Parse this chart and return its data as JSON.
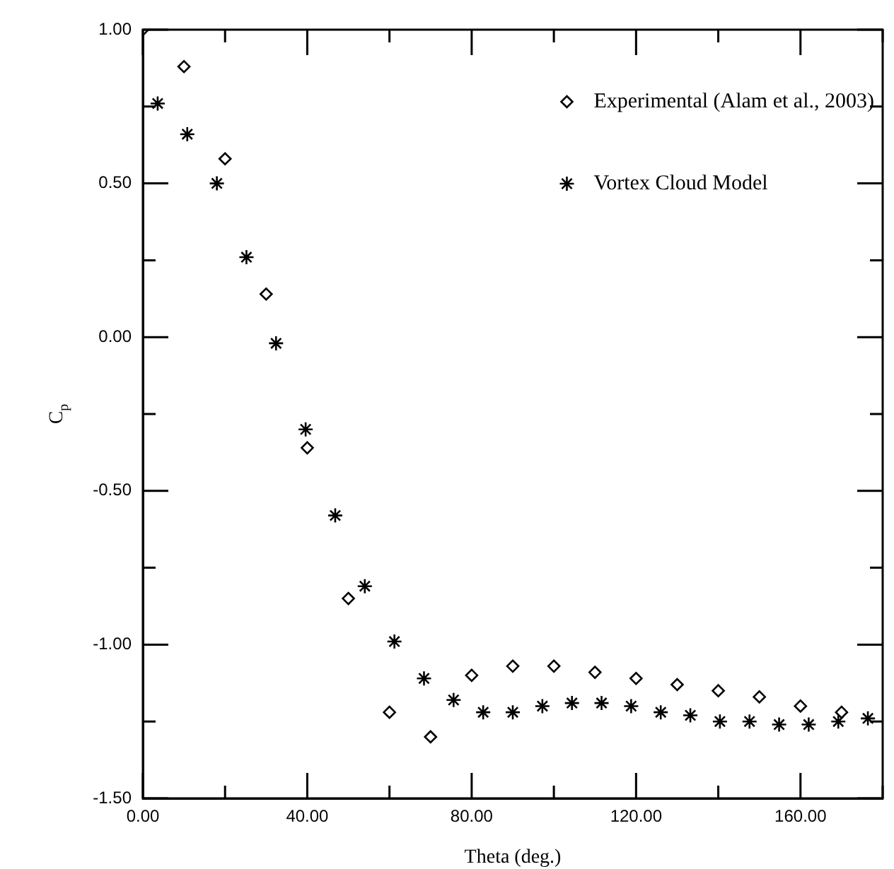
{
  "chart_data": {
    "type": "scatter",
    "xlabel": "Theta (deg.)",
    "ylabel": "C$_{p}$",
    "legend": "top right",
    "grid": false,
    "xlim": [
      0,
      180
    ],
    "xticks": [
      {
        "value": 0,
        "label": "0.00"
      },
      {
        "value": 20,
        "label": null
      },
      {
        "value": 40,
        "label": "40.00"
      },
      {
        "value": 60,
        "label": null
      },
      {
        "value": 80,
        "label": "80.00"
      },
      {
        "value": 100,
        "label": null
      },
      {
        "value": 120,
        "label": "120.00"
      },
      {
        "value": 140,
        "label": null
      },
      {
        "value": 160,
        "label": "160.00"
      },
      {
        "value": 180,
        "label": null
      }
    ],
    "ylim": [
      -1.5,
      1
    ],
    "yticks": [
      {
        "value": -1.5,
        "label": "-1.50"
      },
      {
        "value": -1.25,
        "label": null
      },
      {
        "value": -1,
        "label": "-1.00"
      },
      {
        "value": -0.75,
        "label": null
      },
      {
        "value": -0.5,
        "label": "-0.50"
      },
      {
        "value": -0.25,
        "label": null
      },
      {
        "value": 0,
        "label": "0.00"
      },
      {
        "value": 0.25,
        "label": null
      },
      {
        "value": 0.5,
        "label": "0.50"
      },
      {
        "value": 0.75,
        "label": null
      },
      {
        "value": 1,
        "label": "1.00"
      }
    ],
    "series": [
      {
        "name": "Experimental (Alam et al., 2003)",
        "color": "#000000",
        "marker": "diamond",
        "x": [
          0,
          10,
          20,
          30,
          40,
          50,
          60,
          70,
          80,
          90,
          100,
          110,
          120,
          130,
          140,
          150,
          160,
          170
        ],
        "values": [
          1.0,
          0.88,
          0.58,
          0.14,
          -0.36,
          -0.85,
          -1.22,
          -1.3,
          -1.1,
          -1.07,
          -1.07,
          -1.09,
          -1.11,
          -1.13,
          -1.15,
          -1.17,
          -1.2,
          -1.22
        ]
      },
      {
        "name": "Vortex Cloud Model",
        "color": "#000000",
        "marker": "cross",
        "x": [
          3.6,
          10.8,
          18,
          25.2,
          32.4,
          39.6,
          46.8,
          54,
          61.2,
          68.4,
          75.6,
          82.8,
          90,
          97.2,
          104.4,
          111.6,
          118.8,
          126,
          133.2,
          140.4,
          147.6,
          154.8,
          162,
          169.2,
          176.4
        ],
        "values": [
          0.76,
          0.66,
          0.5,
          0.26,
          -0.02,
          -0.3,
          -0.58,
          -0.81,
          -0.99,
          -1.11,
          -1.18,
          -1.22,
          -1.22,
          -1.2,
          -1.19,
          -1.19,
          -1.2,
          -1.22,
          -1.23,
          -1.25,
          -1.25,
          -1.26,
          -1.26,
          -1.25,
          -1.24
        ]
      }
    ]
  }
}
